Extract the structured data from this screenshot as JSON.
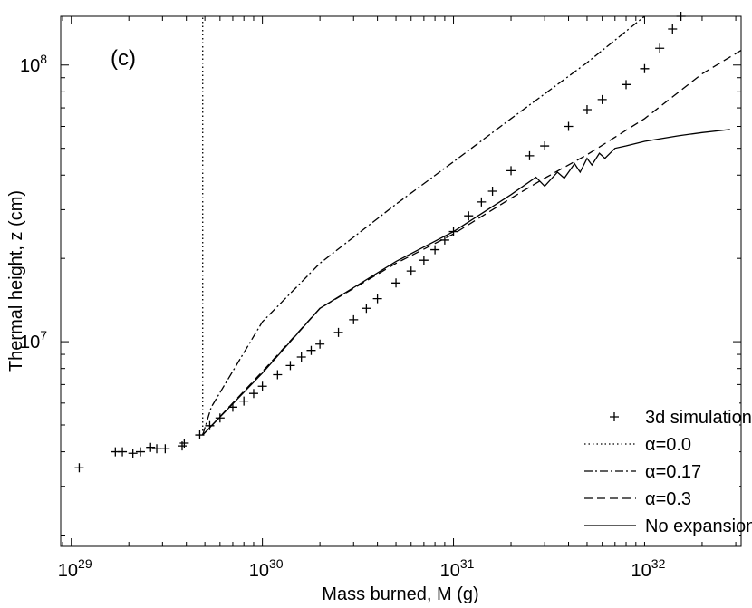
{
  "chart_data": {
    "type": "line",
    "annotation": "(c)",
    "xlabel": "Mass burned, M (g)",
    "ylabel": "Thermal height, z (cm)",
    "xscale": "log",
    "yscale": "log",
    "xlim": [
      8.8e+28,
      3.2e+32
    ],
    "ylim": [
      1820000.0,
      150000000.0
    ],
    "xticks": [
      {
        "value": 1e+29,
        "label": "10^29"
      },
      {
        "value": 1e+30,
        "label": "10^30"
      },
      {
        "value": 1e+31,
        "label": "10^31"
      },
      {
        "value": 1e+32,
        "label": "10^32"
      }
    ],
    "yticks": [
      {
        "value": 10000000.0,
        "label": "10^7"
      },
      {
        "value": 100000000.0,
        "label": "10^8"
      }
    ],
    "legend": "lower right",
    "series": [
      {
        "name": "3d simulation",
        "color": "#000000",
        "style": "marker",
        "x": [
          1.1e+29,
          1.7e+29,
          1.85e+29,
          2.1e+29,
          2.3e+29,
          2.6e+29,
          2.8e+29,
          3.1e+29,
          3.8e+29,
          3.9e+29,
          4.7e+29,
          5.3e+29,
          6e+29,
          7e+29,
          8e+29,
          9e+29,
          1e+30,
          1.2e+30,
          1.4e+30,
          1.6e+30,
          1.8e+30,
          2e+30,
          2.5e+30,
          3e+30,
          3.5e+30,
          4e+30,
          5e+30,
          6e+30,
          7e+30,
          8e+30,
          9e+30,
          1e+31,
          1.2e+31,
          1.4e+31,
          1.6e+31,
          2e+31,
          2.5e+31,
          3e+31,
          4e+31,
          5e+31,
          6e+31,
          8e+31,
          1e+32,
          1.2e+32,
          1.4e+32,
          1.55e+32
        ],
        "values": [
          3500000.0,
          4000000.0,
          4000000.0,
          3950000.0,
          4000000.0,
          4150000.0,
          4100000.0,
          4100000.0,
          4200000.0,
          4300000.0,
          4600000.0,
          4970000.0,
          5300000.0,
          5800000.0,
          6100000.0,
          6500000.0,
          6900000.0,
          7600000.0,
          8200000.0,
          8800000.0,
          9300000.0,
          9800000.0,
          10800000.0,
          12000000.0,
          13200000.0,
          14300000.0,
          16300000.0,
          18000000.0,
          19700000.0,
          21500000.0,
          23300000.0,
          25000000.0,
          28500000.0,
          32000000.0,
          35000000.0,
          41500000.0,
          47000000.0,
          51000000.0,
          60000000.0,
          69000000.0,
          75000000.0,
          85000000.0,
          97000000.0,
          115000000.0,
          135000000.0,
          150000000.0
        ]
      },
      {
        "name": "α=0.0",
        "color": "#000000",
        "style": "dotted",
        "x": [
          4.87e+29,
          4.87e+29
        ],
        "values": [
          4600000.0,
          150000000.0
        ]
      },
      {
        "name": "α=0.17",
        "color": "#000000",
        "style": "dashdot",
        "x": [
          4.87e+29,
          5.4e+29,
          1e+30,
          2e+30,
          5e+30,
          1e+31,
          2e+31,
          5e+31,
          1e+32
        ],
        "values": [
          4600000.0,
          5800000.0,
          11800000.0,
          19200000.0,
          31400000.0,
          44700000.0,
          64000000.0,
          102000000.0,
          150000000.0
        ]
      },
      {
        "name": "α=0.3",
        "color": "#000000",
        "style": "dashed",
        "x": [
          4.87e+29,
          1e+30,
          2e+30,
          5e+30,
          1e+31,
          2e+31,
          3e+31,
          5e+31,
          1e+32,
          2e+32,
          3.2e+32
        ],
        "values": [
          4600000.0,
          7800000.0,
          13200000.0,
          19200000.0,
          24500000.0,
          33000000.0,
          39000000.0,
          47400000.0,
          64000000.0,
          93000000.0,
          113000000.0
        ]
      },
      {
        "name": "No expansion",
        "color": "#000000",
        "style": "solid",
        "x": [
          4.87e+29,
          1e+30,
          2e+30,
          5e+30,
          1e+31,
          2e+31,
          2.7e+31,
          3e+31,
          3.5e+31,
          3.8e+31,
          4.3e+31,
          4.6e+31,
          5e+31,
          5.3e+31,
          5.8e+31,
          6.2e+31,
          7e+31,
          8e+31,
          1e+32,
          1.5e+32,
          2e+32,
          2.8e+32
        ],
        "values": [
          4600000.0,
          7700000.0,
          13200000.0,
          19500000.0,
          25000000.0,
          34000000.0,
          39300000.0,
          36500000.0,
          41000000.0,
          39000000.0,
          44000000.0,
          41000000.0,
          46000000.0,
          43500000.0,
          48000000.0,
          46000000.0,
          50000000.0,
          51000000.0,
          53000000.0,
          55500000.0,
          57000000.0,
          58500000.0
        ]
      }
    ]
  }
}
